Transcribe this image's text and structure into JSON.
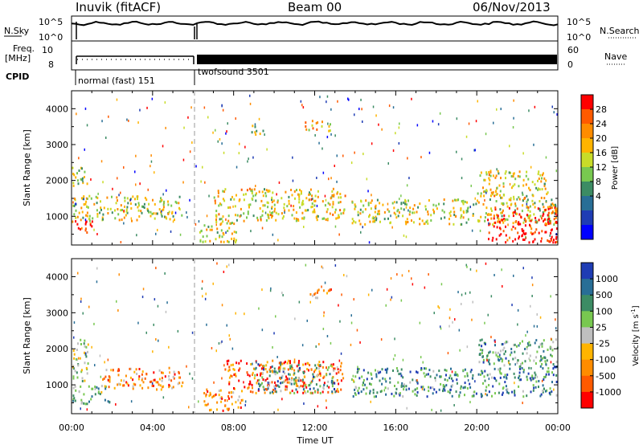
{
  "header": {
    "station": "Inuvik (fitACF)",
    "beam": "Beam 00",
    "date": "06/Nov/2013"
  },
  "status_panel": {
    "nsky_label": "N.Sky",
    "nsky_ticks": [
      "10^5",
      "10^0"
    ],
    "nsearch_label": "N.Search",
    "nsearch_ticks": [
      "10^5",
      "10^0"
    ],
    "freq_label": "Freq.",
    "freq_unit": "[MHz]",
    "freq_ticks": [
      "10",
      "8"
    ],
    "nave_label": "Nave",
    "nave_ticks": [
      "60",
      "0"
    ],
    "cpid_label": "CPID",
    "modes": [
      {
        "name": "normal (fast) 151",
        "start_hour": 0,
        "end_hour": 6
      },
      {
        "name": "twofsound 3501",
        "start_hour": 6,
        "end_hour": 24
      }
    ]
  },
  "x_axis": {
    "ticks": [
      "00:00",
      "04:00",
      "08:00",
      "12:00",
      "16:00",
      "20:00",
      "00:00"
    ],
    "label": "Time UT"
  },
  "chart_data": [
    {
      "type": "heatmap",
      "ylabel": "Slant Range [km]",
      "yticks": [
        "1000",
        "2000",
        "3000",
        "4000"
      ],
      "ylim": [
        200,
        4500
      ],
      "xlim_hours": [
        0,
        24
      ],
      "colorbar": {
        "label": "Power [dB]",
        "ticks": [
          "28",
          "24",
          "20",
          "16",
          "12",
          "8",
          "4"
        ],
        "colors": [
          "#ff0000",
          "#ff5a00",
          "#ff8c00",
          "#ffb400",
          "#c8dc28",
          "#78c850",
          "#3c8c64",
          "#286e96",
          "#1e3cb4",
          "#0000ff"
        ]
      },
      "regions": [
        {
          "t0": 0.0,
          "t1": 5.5,
          "r0": 900,
          "r1": 1600,
          "level": 0.55
        },
        {
          "t0": 0.0,
          "t1": 1.0,
          "r0": 500,
          "r1": 900,
          "level": 0.9
        },
        {
          "t0": 0.0,
          "t1": 0.8,
          "r0": 1800,
          "r1": 2400,
          "level": 0.5
        },
        {
          "t0": 6.3,
          "t1": 8.3,
          "r0": 300,
          "r1": 900,
          "level": 0.6
        },
        {
          "t0": 7.0,
          "t1": 13.5,
          "r0": 900,
          "r1": 1800,
          "level": 0.6
        },
        {
          "t0": 8.8,
          "t1": 9.5,
          "r0": 3300,
          "r1": 3600,
          "level": 0.5
        },
        {
          "t0": 11.5,
          "t1": 12.8,
          "r0": 3400,
          "r1": 3700,
          "level": 0.65
        },
        {
          "t0": 13.8,
          "t1": 24.0,
          "r0": 800,
          "r1": 1500,
          "level": 0.55
        },
        {
          "t0": 20.5,
          "t1": 24.0,
          "r0": 300,
          "r1": 1300,
          "level": 0.95
        },
        {
          "t0": 20.0,
          "t1": 23.5,
          "r0": 1500,
          "r1": 2300,
          "level": 0.6
        }
      ]
    },
    {
      "type": "heatmap",
      "ylabel": "Slant Range [km]",
      "yticks": [
        "1000",
        "2000",
        "3000",
        "4000"
      ],
      "ylim": [
        200,
        4500
      ],
      "xlim_hours": [
        0,
        24
      ],
      "colorbar": {
        "label": "Velocity [m s",
        "label_sup": "-1",
        "label_end": "]",
        "ticks": [
          "1000",
          "500",
          "100",
          "25",
          "-25",
          "-100",
          "-500",
          "-1000"
        ],
        "colors": [
          "#1e3cb4",
          "#286e96",
          "#3c8c64",
          "#78c850",
          "#bfbfbf",
          "#ffb400",
          "#ff8c00",
          "#ff5a00",
          "#ff0000"
        ]
      },
      "regions": [
        {
          "t0": 0.0,
          "t1": 2.0,
          "r0": 500,
          "r1": 1000,
          "level": 0.65
        },
        {
          "t0": 1.5,
          "t1": 5.5,
          "r0": 900,
          "r1": 1500,
          "level": 0.3
        },
        {
          "t0": 0.0,
          "t1": 0.8,
          "r0": 1100,
          "r1": 2300,
          "level": 0.55
        },
        {
          "t0": 6.5,
          "t1": 8.5,
          "r0": 300,
          "r1": 900,
          "level": 0.25
        },
        {
          "t0": 7.5,
          "t1": 13.5,
          "r0": 800,
          "r1": 1700,
          "level": 0.2
        },
        {
          "t0": 9.0,
          "t1": 13.0,
          "r0": 800,
          "r1": 1600,
          "level": 0.7
        },
        {
          "t0": 11.5,
          "t1": 12.8,
          "r0": 3400,
          "r1": 3700,
          "level": 0.3
        },
        {
          "t0": 13.8,
          "t1": 24.0,
          "r0": 700,
          "r1": 1500,
          "level": 0.75
        },
        {
          "t0": 20.0,
          "t1": 24.0,
          "r0": 1500,
          "r1": 2300,
          "level": 0.7
        }
      ]
    }
  ]
}
